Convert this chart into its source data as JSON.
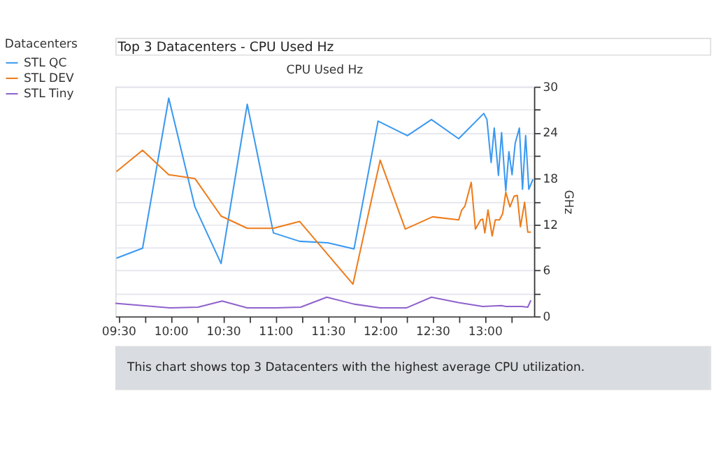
{
  "chart_data": {
    "type": "line",
    "title": "Top 3 Datacenters - CPU Used Hz",
    "subtitle": "CPU Used Hz",
    "ylabel": "GHz",
    "legend_title": "Datacenters",
    "legend": "left",
    "grid": "y",
    "marker": "none",
    "line_style": "solid",
    "annotations": [
      "This chart shows top 3 Datacenters with the highest average CPU utilization."
    ],
    "xlim": [
      9.47,
      13.47
    ],
    "ylim": [
      0,
      30
    ],
    "xticks": [
      {
        "value": 9.5,
        "label": "09:30"
      },
      {
        "value": 9.75,
        "label": null
      },
      {
        "value": 10,
        "label": "10:00"
      },
      {
        "value": 10.25,
        "label": null
      },
      {
        "value": 10.5,
        "label": "10:30"
      },
      {
        "value": 10.75,
        "label": null
      },
      {
        "value": 11,
        "label": "11:00"
      },
      {
        "value": 11.25,
        "label": null
      },
      {
        "value": 11.5,
        "label": "11:30"
      },
      {
        "value": 11.75,
        "label": null
      },
      {
        "value": 12,
        "label": "12:00"
      },
      {
        "value": 12.25,
        "label": null
      },
      {
        "value": 12.5,
        "label": "12:30"
      },
      {
        "value": 12.75,
        "label": null
      },
      {
        "value": 13,
        "label": "13:00"
      },
      {
        "value": 13.25,
        "label": null
      }
    ],
    "yticks": [
      0,
      {
        "value": 3,
        "label": null
      },
      6,
      {
        "value": 9,
        "label": null
      },
      12,
      {
        "value": 15,
        "label": null
      },
      18,
      {
        "value": 21,
        "label": null
      },
      24,
      {
        "value": 27,
        "label": null
      },
      30
    ],
    "series": [
      {
        "name": "STL QC",
        "color": "#3a99f0",
        "x": [
          9.48,
          9.73,
          9.98,
          10.23,
          10.48,
          10.73,
          10.98,
          11.23,
          11.5,
          11.75,
          11.98,
          12.26,
          12.49,
          12.75,
          12.99,
          13.02,
          13.06,
          13.09,
          13.13,
          13.16,
          13.2,
          13.23,
          13.26,
          13.29,
          13.33,
          13.36,
          13.39,
          13.42,
          13.46
        ],
        "values": [
          7.6,
          8.9,
          28.5,
          14.3,
          6.9,
          27.7,
          10.9,
          9.8,
          9.6,
          8.8,
          25.5,
          23.6,
          25.7,
          23.2,
          26.5,
          25.7,
          20.1,
          24.6,
          18.4,
          24.0,
          16.4,
          21.5,
          18.5,
          22.6,
          24.6,
          16.6,
          23.6,
          16.6,
          17.9
        ]
      },
      {
        "name": "STL DEV",
        "color": "#ee7c1a",
        "x": [
          9.48,
          9.73,
          9.98,
          10.23,
          10.48,
          10.73,
          10.98,
          11.23,
          11.74,
          12.0,
          12.24,
          12.5,
          12.75,
          12.78,
          12.81,
          12.87,
          12.91,
          12.96,
          12.98,
          13.0,
          13.03,
          13.07,
          13.1,
          13.14,
          13.17,
          13.2,
          13.24,
          13.28,
          13.31,
          13.34,
          13.38,
          13.41,
          13.44
        ],
        "values": [
          18.9,
          21.7,
          18.5,
          18.0,
          13.1,
          11.5,
          11.5,
          12.4,
          4.2,
          20.4,
          11.4,
          13.0,
          12.6,
          13.9,
          14.4,
          17.5,
          11.4,
          12.6,
          12.7,
          10.9,
          13.9,
          10.5,
          12.6,
          12.6,
          13.4,
          16.2,
          14.3,
          15.7,
          15.8,
          11.7,
          14.9,
          11.0,
          11.0
        ]
      },
      {
        "name": "STL Tiny",
        "color": "#8f62cc",
        "x": [
          9.47,
          9.99,
          10.26,
          10.49,
          10.73,
          11.0,
          11.24,
          11.49,
          11.75,
          12.0,
          12.25,
          12.49,
          12.75,
          12.98,
          13.16,
          13.2,
          13.35,
          13.41,
          13.44
        ],
        "values": [
          1.7,
          1.1,
          1.2,
          2.0,
          1.1,
          1.1,
          1.2,
          2.5,
          1.6,
          1.1,
          1.1,
          2.5,
          1.8,
          1.3,
          1.4,
          1.3,
          1.3,
          1.2,
          2.1
        ]
      }
    ]
  }
}
